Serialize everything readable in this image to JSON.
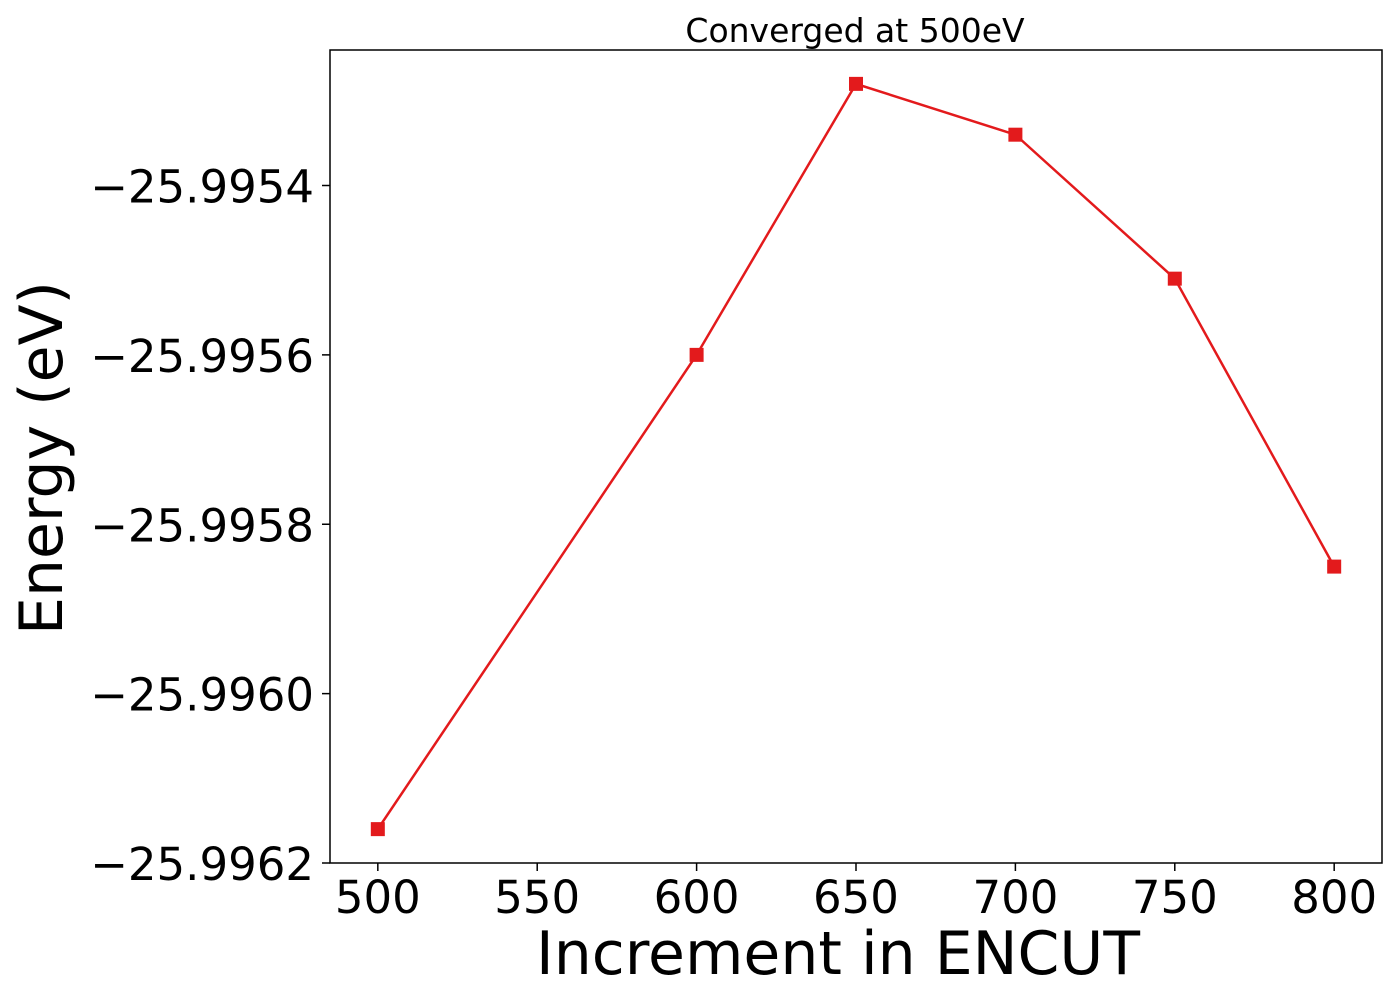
{
  "chart_data": {
    "type": "line",
    "title": "Converged at 500eV",
    "xlabel": "Increment in ENCUT",
    "ylabel": "Energy (eV)",
    "x": [
      500,
      600,
      650,
      700,
      750,
      800
    ],
    "series": [
      {
        "values": [
          -25.99616,
          -25.9956,
          -25.99528,
          -25.99534,
          -25.99551,
          -25.99585
        ],
        "color": "#e31a1c",
        "marker": "square"
      }
    ],
    "xlim": [
      485,
      815
    ],
    "ylim": [
      -25.9962,
      -25.99524
    ],
    "xticks": [
      500,
      550,
      600,
      650,
      700,
      750,
      800
    ],
    "xtick_labels": [
      "500",
      "550",
      "600",
      "650",
      "700",
      "750",
      "800"
    ],
    "yticks": [
      -25.9962,
      -25.996,
      -25.9958,
      -25.9956,
      -25.9954
    ],
    "ytick_labels": [
      "−25.9962",
      "−25.9960",
      "−25.9958",
      "−25.9956",
      "−25.9954"
    ],
    "grid": false,
    "legend": "none"
  }
}
